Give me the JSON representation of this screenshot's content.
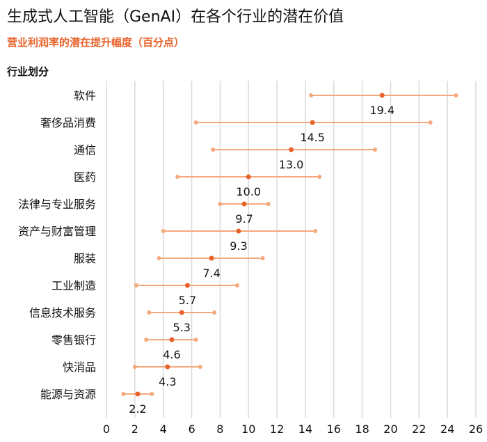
{
  "title": "生成式人工智能（GenAI）在各个行业的潜在价值",
  "subtitle": "营业利润率的潜在提升幅度（百分点）",
  "colors": {
    "accent": "#E8622A",
    "range": "#F4A97C",
    "grid": "#D9D9D9",
    "subtitle": "#E8622A"
  },
  "chart_data": {
    "type": "range-dot",
    "ylabel": "行业划分",
    "xlabel": "",
    "xlim": [
      0,
      26
    ],
    "xticks": [
      0,
      2,
      4,
      6,
      8,
      10,
      12,
      14,
      16,
      18,
      20,
      22,
      24,
      26
    ],
    "grid": true,
    "categories": [
      "软件",
      "奢侈品消费",
      "通信",
      "医药",
      "法律与专业服务",
      "资产与财富管理",
      "服装",
      "工业制造",
      "信息技术服务",
      "零售银行",
      "快消品",
      "能源与资源"
    ],
    "mid": [
      19.4,
      14.5,
      13.0,
      10.0,
      9.7,
      9.3,
      7.4,
      5.7,
      5.3,
      4.6,
      4.3,
      2.2
    ],
    "low": [
      14.4,
      6.3,
      7.5,
      5.0,
      8.0,
      4.0,
      3.7,
      2.1,
      3.0,
      2.8,
      2.0,
      1.2
    ],
    "high": [
      24.6,
      22.8,
      18.9,
      15.0,
      11.4,
      14.7,
      11.0,
      9.2,
      7.6,
      6.3,
      6.6,
      3.2
    ],
    "labels": [
      "19.4",
      "14.5",
      "13.0",
      "10.0",
      "9.7",
      "9.3",
      "7.4",
      "5.7",
      "5.3",
      "4.6",
      "4.3",
      "2.2"
    ]
  }
}
